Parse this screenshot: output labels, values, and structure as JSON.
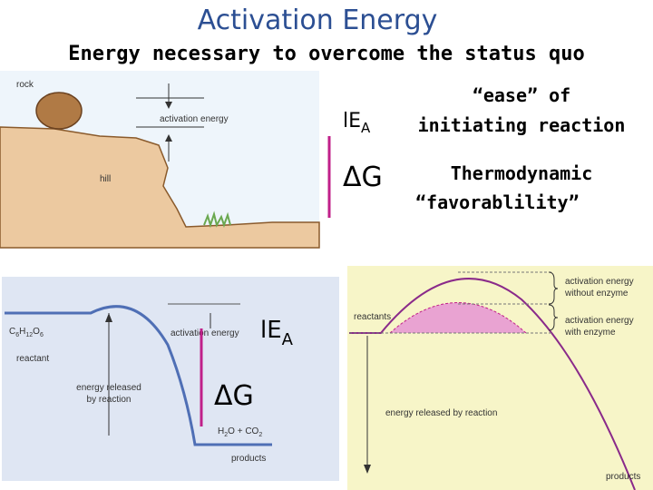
{
  "header": {
    "title": "Activation Energy",
    "subtitle": "Energy necessary to overcome the status quo"
  },
  "rock_panel": {
    "rock": "rock",
    "activation_energy": "activation energy",
    "hill": "hill"
  },
  "legend": {
    "ea_symbol": "lE",
    "ea_subscript": "A",
    "ea_text": [
      "“ease” of",
      "initiating reaction"
    ],
    "dg_symbol": "ΔG",
    "dg_text": [
      "Thermodynamic",
      "“favorablility”"
    ]
  },
  "glucose_panel": {
    "reactant_formula": [
      "C",
      "6",
      "H",
      "12",
      "O",
      "6"
    ],
    "reactant": "reactant",
    "activation_energy": "activation energy",
    "energy_released": [
      "energy released",
      "by reaction"
    ],
    "product_formula": [
      "H",
      "2",
      "O + CO",
      "2"
    ],
    "products": "products",
    "ea_symbol": "lE",
    "ea_subscript": "A",
    "dg_symbol": "ΔG"
  },
  "enzyme_panel": {
    "reactants": "reactants",
    "without_enzyme": [
      "activation energy",
      "without enzyme"
    ],
    "with_enzyme": [
      "activation energy",
      "with enzyme"
    ],
    "energy_released": "energy released by reaction",
    "products": "products"
  }
}
